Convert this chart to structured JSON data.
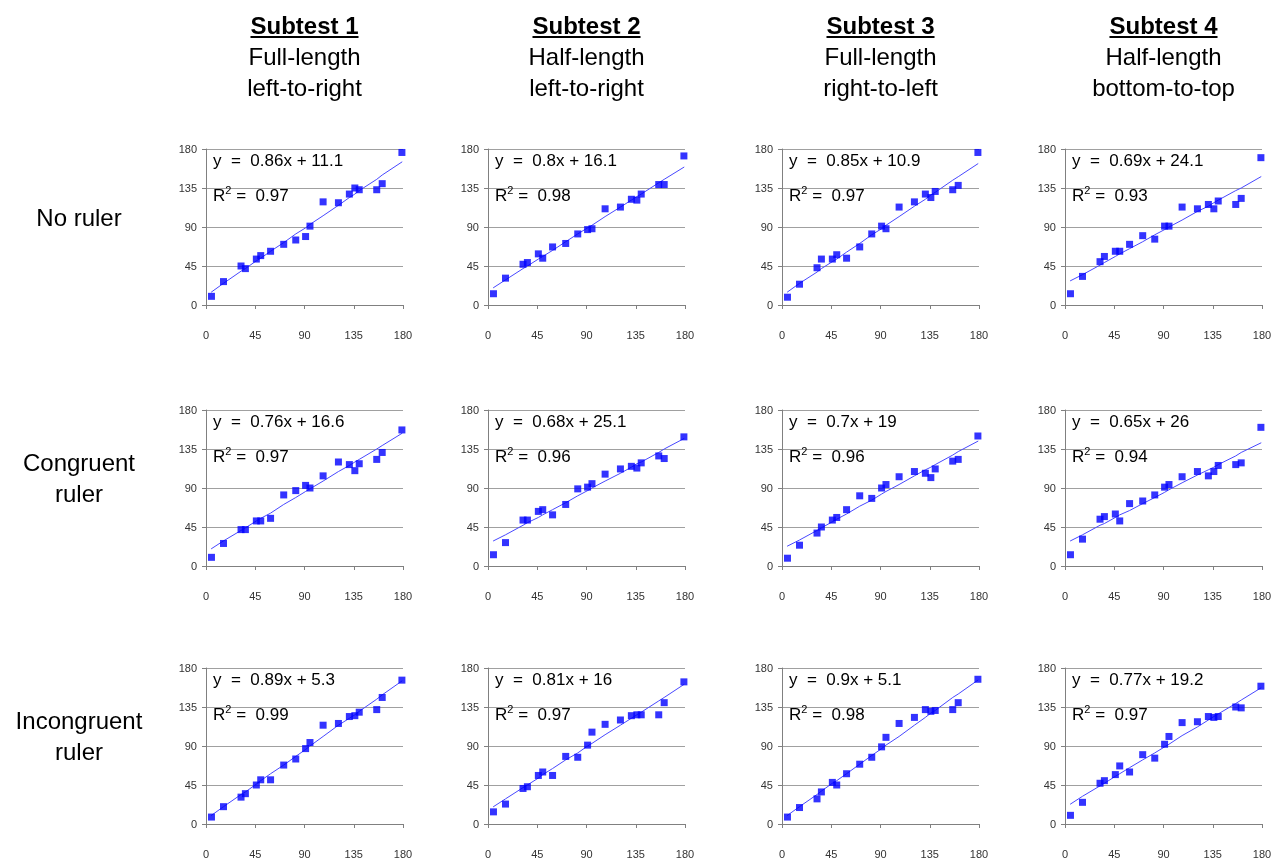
{
  "chart_data": [
    {
      "type": "scatter",
      "title": "Subtest 1",
      "subtitle": "Full-length left-to-right",
      "ylabel": "No ruler",
      "annotations": [
        "y  =  0.86x + 11.1",
        "R$^{2}$ =  0.97"
      ],
      "x": [
        5,
        16,
        32,
        36,
        46,
        50,
        59,
        71,
        82,
        91,
        95,
        107,
        121,
        131,
        136,
        140,
        156,
        161,
        179
      ],
      "grid": "y",
      "xlim": [
        0,
        180
      ],
      "ylim": [
        0,
        180
      ],
      "xticks": [
        0,
        45,
        90,
        135,
        180
      ],
      "yticks": [
        0,
        45,
        90,
        135,
        180
      ],
      "series": [
        {
          "marker": "square",
          "color": "#0000ff",
          "values": [
            10,
            27,
            45,
            42,
            53,
            57,
            62,
            70,
            75,
            79,
            91,
            119,
            118,
            128,
            135,
            133,
            133,
            140,
            176
          ]
        },
        {
          "type": "line",
          "marker": "none",
          "color": "#4848ff",
          "values": [
            15,
            25,
            39,
            42,
            51,
            54,
            62,
            72,
            82,
            89,
            93,
            103,
            115,
            124,
            128,
            132,
            145,
            150,
            165
          ]
        }
      ]
    },
    {
      "type": "scatter",
      "title": "Subtest 2",
      "subtitle": "Half-length left-to-right",
      "annotations": [
        "y  =  0.8x + 16.1",
        "R$^{2}$ =  0.98"
      ],
      "x": [
        5,
        16,
        32,
        36,
        46,
        50,
        59,
        71,
        82,
        91,
        95,
        107,
        121,
        131,
        136,
        140,
        156,
        161,
        179
      ],
      "grid": "y",
      "xlim": [
        0,
        180
      ],
      "ylim": [
        0,
        180
      ],
      "xticks": [
        0,
        45,
        90,
        135,
        180
      ],
      "yticks": [
        0,
        45,
        90,
        135,
        180
      ],
      "series": [
        {
          "marker": "square",
          "color": "#0000ff",
          "values": [
            13,
            31,
            47,
            49,
            59,
            54,
            67,
            71,
            82,
            87,
            88,
            111,
            113,
            122,
            121,
            128,
            139,
            139,
            172
          ]
        },
        {
          "type": "line",
          "marker": "none",
          "color": "#4848ff",
          "values": [
            20,
            29,
            42,
            45,
            53,
            56,
            63,
            73,
            82,
            89,
            92,
            102,
            113,
            121,
            125,
            128,
            141,
            145,
            159
          ]
        }
      ]
    },
    {
      "type": "scatter",
      "title": "Subtest 3",
      "subtitle": "Full-length right-to-left",
      "annotations": [
        "y  =  0.85x + 10.9",
        "R$^{2}$ =  0.97"
      ],
      "x": [
        5,
        16,
        32,
        36,
        46,
        50,
        59,
        71,
        82,
        91,
        95,
        107,
        121,
        131,
        136,
        140,
        156,
        161,
        179
      ],
      "grid": "y",
      "xlim": [
        0,
        180
      ],
      "ylim": [
        0,
        180
      ],
      "xticks": [
        0,
        45,
        90,
        135,
        180
      ],
      "yticks": [
        0,
        45,
        90,
        135,
        180
      ],
      "series": [
        {
          "marker": "square",
          "color": "#0000ff",
          "values": [
            9,
            24,
            43,
            53,
            53,
            58,
            54,
            67,
            82,
            91,
            88,
            113,
            119,
            128,
            124,
            131,
            133,
            138,
            176
          ]
        },
        {
          "type": "line",
          "marker": "none",
          "color": "#4848ff",
          "values": [
            15,
            25,
            38,
            42,
            50,
            53,
            61,
            71,
            81,
            88,
            92,
            102,
            114,
            122,
            127,
            130,
            144,
            148,
            163
          ]
        }
      ]
    },
    {
      "type": "scatter",
      "title": "Subtest 4",
      "subtitle": "Half-length bottom-to-top",
      "annotations": [
        "y  =  0.69x + 24.1",
        "R$^{2}$ =  0.93"
      ],
      "x": [
        5,
        16,
        32,
        36,
        46,
        50,
        59,
        71,
        82,
        91,
        95,
        107,
        121,
        131,
        136,
        140,
        156,
        161,
        179
      ],
      "grid": "y",
      "xlim": [
        0,
        180
      ],
      "ylim": [
        0,
        180
      ],
      "xticks": [
        0,
        45,
        90,
        135,
        180
      ],
      "yticks": [
        0,
        45,
        90,
        135,
        180
      ],
      "series": [
        {
          "marker": "square",
          "color": "#0000ff",
          "values": [
            13,
            33,
            50,
            56,
            62,
            62,
            70,
            80,
            76,
            91,
            91,
            113,
            111,
            116,
            111,
            120,
            116,
            123,
            170
          ]
        },
        {
          "type": "line",
          "marker": "none",
          "color": "#4848ff",
          "values": [
            28,
            35,
            46,
            49,
            56,
            59,
            65,
            73,
            81,
            87,
            90,
            98,
            108,
            114,
            118,
            121,
            132,
            135,
            148
          ]
        }
      ]
    },
    {
      "type": "scatter",
      "ylabel": "Congruent ruler",
      "annotations": [
        "y  =  0.76x + 16.6",
        "R$^{2}$ =  0.97"
      ],
      "x": [
        5,
        16,
        32,
        36,
        46,
        50,
        59,
        71,
        82,
        91,
        95,
        107,
        121,
        131,
        136,
        140,
        156,
        161,
        179
      ],
      "grid": "y",
      "xlim": [
        0,
        180
      ],
      "ylim": [
        0,
        180
      ],
      "xticks": [
        0,
        45,
        90,
        135,
        180
      ],
      "yticks": [
        0,
        45,
        90,
        135,
        180
      ],
      "series": [
        {
          "marker": "square",
          "color": "#0000ff",
          "values": [
            10,
            26,
            42,
            42,
            52,
            52,
            55,
            82,
            87,
            93,
            90,
            104,
            120,
            117,
            110,
            118,
            123,
            131,
            157
          ]
        },
        {
          "type": "line",
          "marker": "none",
          "color": "#4848ff",
          "values": [
            20,
            29,
            41,
            44,
            52,
            55,
            61,
            71,
            79,
            86,
            89,
            98,
            109,
            116,
            120,
            123,
            135,
            139,
            153
          ]
        }
      ]
    },
    {
      "type": "scatter",
      "annotations": [
        "y  =  0.68x + 25.1",
        "R$^{2}$ =  0.96"
      ],
      "x": [
        5,
        16,
        32,
        36,
        46,
        50,
        59,
        71,
        82,
        91,
        95,
        107,
        121,
        131,
        136,
        140,
        156,
        161,
        179
      ],
      "grid": "y",
      "xlim": [
        0,
        180
      ],
      "ylim": [
        0,
        180
      ],
      "xticks": [
        0,
        45,
        90,
        135,
        180
      ],
      "yticks": [
        0,
        45,
        90,
        135,
        180
      ],
      "series": [
        {
          "marker": "square",
          "color": "#0000ff",
          "values": [
            13,
            27,
            53,
            53,
            63,
            65,
            59,
            71,
            89,
            91,
            95,
            106,
            112,
            115,
            113,
            119,
            127,
            124,
            149
          ]
        },
        {
          "type": "line",
          "marker": "none",
          "color": "#4848ff",
          "values": [
            29,
            36,
            47,
            50,
            56,
            59,
            65,
            73,
            81,
            87,
            90,
            98,
            107,
            114,
            118,
            120,
            131,
            135,
            147
          ]
        }
      ]
    },
    {
      "type": "scatter",
      "annotations": [
        "y  =  0.7x + 19",
        "R$^{2}$ =  0.96"
      ],
      "x": [
        5,
        16,
        32,
        36,
        46,
        50,
        59,
        71,
        82,
        91,
        95,
        107,
        121,
        131,
        136,
        140,
        156,
        161,
        179
      ],
      "grid": "y",
      "xlim": [
        0,
        180
      ],
      "ylim": [
        0,
        180
      ],
      "xticks": [
        0,
        45,
        90,
        135,
        180
      ],
      "yticks": [
        0,
        45,
        90,
        135,
        180
      ],
      "series": [
        {
          "marker": "square",
          "color": "#0000ff",
          "values": [
            9,
            24,
            38,
            45,
            53,
            56,
            65,
            81,
            78,
            90,
            94,
            103,
            109,
            107,
            102,
            112,
            121,
            123,
            150
          ]
        },
        {
          "type": "line",
          "marker": "none",
          "color": "#4848ff",
          "values": [
            23,
            30,
            41,
            44,
            51,
            54,
            60,
            69,
            76,
            83,
            86,
            94,
            104,
            111,
            114,
            117,
            128,
            132,
            144
          ]
        }
      ]
    },
    {
      "type": "scatter",
      "annotations": [
        "y  =  0.65x + 26",
        "R$^{2}$ =  0.94"
      ],
      "x": [
        5,
        16,
        32,
        36,
        46,
        50,
        59,
        71,
        82,
        91,
        95,
        107,
        121,
        131,
        136,
        140,
        156,
        161,
        179
      ],
      "grid": "y",
      "xlim": [
        0,
        180
      ],
      "ylim": [
        0,
        180
      ],
      "xticks": [
        0,
        45,
        90,
        135,
        180
      ],
      "yticks": [
        0,
        45,
        90,
        135,
        180
      ],
      "series": [
        {
          "marker": "square",
          "color": "#0000ff",
          "values": [
            13,
            31,
            54,
            57,
            60,
            52,
            72,
            75,
            82,
            91,
            94,
            103,
            109,
            104,
            109,
            116,
            117,
            119,
            160
          ]
        },
        {
          "type": "line",
          "marker": "none",
          "color": "#4848ff",
          "values": [
            29,
            36,
            47,
            49,
            56,
            59,
            64,
            72,
            79,
            85,
            88,
            96,
            105,
            111,
            114,
            117,
            127,
            131,
            142
          ]
        }
      ]
    },
    {
      "type": "scatter",
      "ylabel": "Incongruent ruler",
      "annotations": [
        "y  =  0.89x + 5.3",
        "R$^{2}$ =  0.99"
      ],
      "x": [
        5,
        16,
        32,
        36,
        46,
        50,
        59,
        71,
        82,
        91,
        95,
        107,
        121,
        131,
        136,
        140,
        156,
        161,
        179
      ],
      "grid": "y",
      "xlim": [
        0,
        180
      ],
      "ylim": [
        0,
        180
      ],
      "xticks": [
        0,
        45,
        90,
        135,
        180
      ],
      "yticks": [
        0,
        45,
        90,
        135,
        180
      ],
      "series": [
        {
          "marker": "square",
          "color": "#0000ff",
          "values": [
            8,
            20,
            31,
            35,
            45,
            51,
            51,
            68,
            75,
            87,
            94,
            114,
            116,
            124,
            125,
            129,
            132,
            146,
            166
          ]
        },
        {
          "type": "line",
          "marker": "none",
          "color": "#4848ff",
          "values": [
            10,
            20,
            34,
            37,
            46,
            50,
            58,
            68,
            78,
            86,
            90,
            101,
            114,
            122,
            126,
            130,
            144,
            149,
            165
          ]
        }
      ]
    },
    {
      "type": "scatter",
      "annotations": [
        "y  =  0.81x + 16",
        "R$^{2}$ =  0.97"
      ],
      "x": [
        5,
        16,
        32,
        36,
        46,
        50,
        59,
        71,
        82,
        91,
        95,
        107,
        121,
        131,
        136,
        140,
        156,
        161,
        179
      ],
      "grid": "y",
      "xlim": [
        0,
        180
      ],
      "ylim": [
        0,
        180
      ],
      "xticks": [
        0,
        45,
        90,
        135,
        180
      ],
      "yticks": [
        0,
        45,
        90,
        135,
        180
      ],
      "series": [
        {
          "marker": "square",
          "color": "#0000ff",
          "values": [
            14,
            23,
            41,
            43,
            56,
            60,
            56,
            78,
            77,
            91,
            106,
            115,
            120,
            125,
            126,
            126,
            126,
            140,
            164
          ]
        },
        {
          "type": "line",
          "marker": "none",
          "color": "#4848ff",
          "values": [
            20,
            29,
            42,
            45,
            53,
            57,
            64,
            74,
            82,
            90,
            93,
            103,
            114,
            122,
            126,
            129,
            142,
            146,
            161
          ]
        }
      ]
    },
    {
      "type": "scatter",
      "annotations": [
        "y  =  0.9x + 5.1",
        "R$^{2}$ =  0.98"
      ],
      "x": [
        5,
        16,
        32,
        36,
        46,
        50,
        59,
        71,
        82,
        91,
        95,
        107,
        121,
        131,
        136,
        140,
        156,
        161,
        179
      ],
      "grid": "y",
      "xlim": [
        0,
        180
      ],
      "ylim": [
        0,
        180
      ],
      "xticks": [
        0,
        45,
        90,
        135,
        180
      ],
      "yticks": [
        0,
        45,
        90,
        135,
        180
      ],
      "series": [
        {
          "marker": "square",
          "color": "#0000ff",
          "values": [
            8,
            19,
            29,
            37,
            48,
            45,
            58,
            69,
            77,
            89,
            100,
            116,
            123,
            132,
            130,
            131,
            132,
            140,
            167
          ]
        },
        {
          "type": "line",
          "marker": "none",
          "color": "#4848ff",
          "values": [
            10,
            20,
            34,
            38,
            47,
            50,
            58,
            69,
            79,
            87,
            91,
            101,
            114,
            123,
            128,
            131,
            146,
            150,
            166
          ]
        }
      ]
    },
    {
      "type": "scatter",
      "annotations": [
        "y  =  0.77x + 19.2",
        "R$^{2}$ =  0.97"
      ],
      "x": [
        5,
        16,
        32,
        36,
        46,
        50,
        59,
        71,
        82,
        91,
        95,
        107,
        121,
        131,
        136,
        140,
        156,
        161,
        179
      ],
      "grid": "y",
      "xlim": [
        0,
        180
      ],
      "ylim": [
        0,
        180
      ],
      "xticks": [
        0,
        45,
        90,
        135,
        180
      ],
      "yticks": [
        0,
        45,
        90,
        135,
        180
      ],
      "series": [
        {
          "marker": "square",
          "color": "#0000ff",
          "values": [
            10,
            25,
            47,
            50,
            57,
            67,
            60,
            80,
            76,
            92,
            101,
            117,
            118,
            124,
            123,
            124,
            135,
            134,
            159
          ]
        },
        {
          "type": "line",
          "marker": "none",
          "color": "#4848ff",
          "values": [
            23,
            32,
            44,
            47,
            55,
            58,
            65,
            74,
            82,
            89,
            92,
            102,
            112,
            120,
            124,
            127,
            139,
            143,
            157
          ]
        }
      ]
    }
  ]
}
